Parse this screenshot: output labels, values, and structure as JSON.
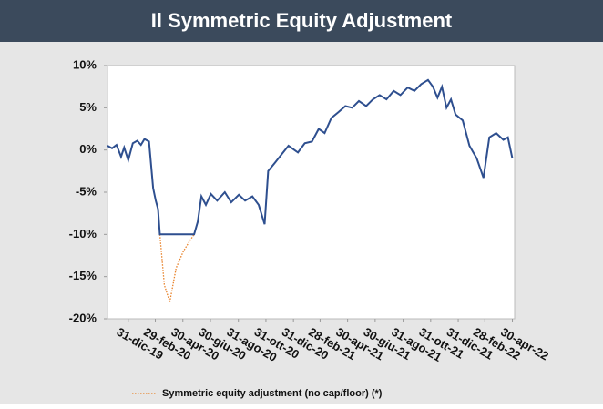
{
  "chart_data": {
    "type": "line",
    "title": "Il Symmetric Equity Adjustment",
    "x": [
      "2019-11-15",
      "2019-11-25",
      "2019-12-05",
      "2019-12-15",
      "2019-12-22",
      "2019-12-31",
      "2020-01-10",
      "2020-01-20",
      "2020-01-28",
      "2020-02-05",
      "2020-02-15",
      "2020-02-24",
      "2020-03-01",
      "2020-03-06",
      "2020-03-10",
      "2020-03-20",
      "2020-04-01",
      "2020-04-15",
      "2020-05-01",
      "2020-05-15",
      "2020-05-25",
      "2020-06-02",
      "2020-06-10",
      "2020-06-20",
      "2020-07-01",
      "2020-07-15",
      "2020-08-01",
      "2020-08-15",
      "2020-09-01",
      "2020-09-15",
      "2020-10-01",
      "2020-10-15",
      "2020-10-28",
      "2020-11-05",
      "2020-11-20",
      "2020-12-05",
      "2020-12-20",
      "2021-01-10",
      "2021-01-25",
      "2021-02-10",
      "2021-02-25",
      "2021-03-10",
      "2021-03-25",
      "2021-04-10",
      "2021-04-25",
      "2021-05-10",
      "2021-05-25",
      "2021-06-10",
      "2021-06-25",
      "2021-07-10",
      "2021-07-25",
      "2021-08-10",
      "2021-08-25",
      "2021-09-10",
      "2021-09-25",
      "2021-10-10",
      "2021-10-25",
      "2021-11-05",
      "2021-11-15",
      "2021-11-25",
      "2021-12-05",
      "2021-12-15",
      "2021-12-25",
      "2022-01-10",
      "2022-01-25",
      "2022-02-10",
      "2022-02-25",
      "2022-03-10",
      "2022-03-25",
      "2022-04-10",
      "2022-04-20",
      "2022-04-30"
    ],
    "series": [
      {
        "color": "#2e4f8f",
        "style": "solid",
        "values": [
          0.5,
          0.2,
          0.6,
          -0.8,
          0.3,
          -1.2,
          0.8,
          1.1,
          0.6,
          1.3,
          1.0,
          -4.5,
          -6.0,
          -7.0,
          -10,
          -10,
          -10,
          -10,
          -10,
          -10,
          -10,
          -8.5,
          -5.5,
          -6.5,
          -5.2,
          -6.0,
          -5.0,
          -6.2,
          -5.3,
          -6.0,
          -5.5,
          -6.5,
          -8.8,
          -2.5,
          -1.5,
          -0.5,
          0.5,
          -0.3,
          0.8,
          1.0,
          2.5,
          2.0,
          3.8,
          4.5,
          5.2,
          5.0,
          5.8,
          5.2,
          6.0,
          6.5,
          6.0,
          7.0,
          6.5,
          7.4,
          7.0,
          7.8,
          8.3,
          7.5,
          6.2,
          7.5,
          5.0,
          6.0,
          4.2,
          3.5,
          0.5,
          -1.0,
          -3.3,
          1.5,
          2.0,
          1.2,
          1.5,
          -1.0
        ]
      },
      {
        "name": "Symmetric equity adjustment (no cap/floor) (*)",
        "color": "#e8822a",
        "style": "dotted",
        "values": [
          null,
          null,
          null,
          null,
          null,
          null,
          null,
          null,
          null,
          null,
          null,
          null,
          null,
          null,
          -10,
          -16,
          -18,
          -14,
          -12,
          -10.8,
          -10,
          null,
          null,
          null,
          null,
          null,
          null,
          null,
          null,
          null,
          null,
          null,
          null,
          null,
          null,
          null,
          null,
          null,
          null,
          null,
          null,
          null,
          null,
          null,
          null,
          null,
          null,
          null,
          null,
          null,
          null,
          null,
          null,
          null,
          null,
          null,
          null,
          null,
          null,
          null,
          null,
          null,
          null,
          null,
          null,
          null,
          null,
          null,
          null,
          null,
          null,
          null
        ]
      }
    ],
    "xlim": [
      "2019-11-15",
      "2022-05-05"
    ],
    "xticks": [
      {
        "value": "2019-12-31",
        "label": "31-dic-19"
      },
      {
        "value": "2020-02-29",
        "label": "29-feb-20"
      },
      {
        "value": "2020-04-30",
        "label": "30-apr-20"
      },
      {
        "value": "2020-06-30",
        "label": "30-giu-20"
      },
      {
        "value": "2020-08-31",
        "label": "31-ago-20"
      },
      {
        "value": "2020-10-31",
        "label": "31-ott-20"
      },
      {
        "value": "2020-12-31",
        "label": "31-dic-20"
      },
      {
        "value": "2021-02-28",
        "label": "28-feb-21"
      },
      {
        "value": "2021-04-30",
        "label": "30-apr-21"
      },
      {
        "value": "2021-06-30",
        "label": "30-giu-21"
      },
      {
        "value": "2021-08-31",
        "label": "31-ago-21"
      },
      {
        "value": "2021-10-31",
        "label": "31-ott-21"
      },
      {
        "value": "2021-12-31",
        "label": "31-dic-21"
      },
      {
        "value": "2022-02-28",
        "label": "28-feb-22"
      },
      {
        "value": "2022-04-30",
        "label": "30-apr-22"
      }
    ],
    "ylim": [
      -20,
      10
    ],
    "yticks": [
      {
        "value": -20,
        "label": "-20%"
      },
      {
        "value": -15,
        "label": "-15%"
      },
      {
        "value": -10,
        "label": "-10%"
      },
      {
        "value": -5,
        "label": "-5%"
      },
      {
        "value": 0,
        "label": "0%"
      },
      {
        "value": 5,
        "label": "5%"
      },
      {
        "value": 10,
        "label": "10%"
      }
    ],
    "grid": false,
    "legend": "bottom"
  }
}
